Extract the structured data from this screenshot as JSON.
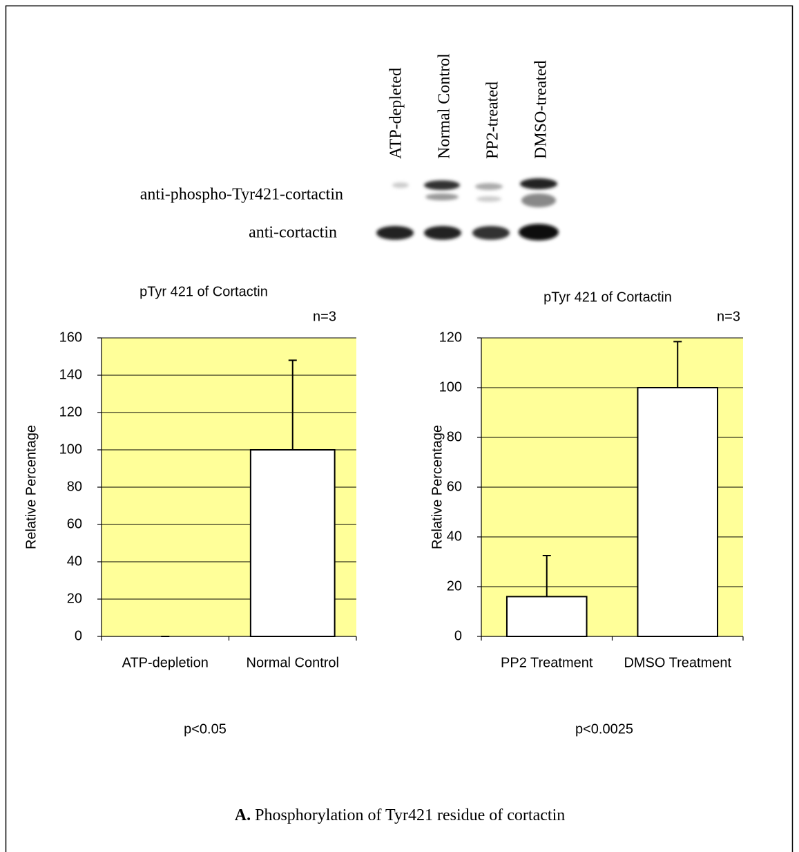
{
  "blot": {
    "lanes": [
      "ATP-depleted",
      "Normal Control",
      "PP2-treated",
      "DMSO-treated"
    ],
    "rows": [
      "anti-phospho-Tyr421-cortactin",
      "anti-cortactin"
    ]
  },
  "chart_data": [
    {
      "type": "bar",
      "title": "pTyr 421 of Cortactin",
      "annotation": "n=3",
      "ylabel": "Relative Percentage",
      "categories": [
        "ATP-depletion",
        "Normal Control"
      ],
      "values": [
        0,
        100
      ],
      "errors": [
        0,
        48
      ],
      "color": "#ffffff",
      "background": "#ffff99",
      "ylim": [
        0,
        160
      ],
      "yticks": [
        0,
        20,
        40,
        60,
        80,
        100,
        120,
        140,
        160
      ],
      "grid": true,
      "note": "p<0.05"
    },
    {
      "type": "bar",
      "title": "pTyr 421 of Cortactin",
      "annotation": "n=3",
      "ylabel": "Relative Percentage",
      "categories": [
        "PP2 Treatment",
        "DMSO Treatment"
      ],
      "values": [
        16,
        100
      ],
      "errors": [
        16.5,
        18.5
      ],
      "color": "#ffffff",
      "background": "#ffff99",
      "ylim": [
        0,
        120
      ],
      "yticks": [
        0,
        20,
        40,
        60,
        80,
        100,
        120
      ],
      "grid": true,
      "note": "p<0.0025"
    }
  ],
  "caption": {
    "label": "A.",
    "text": "Phosphorylation of Tyr421 residue of cortactin"
  }
}
